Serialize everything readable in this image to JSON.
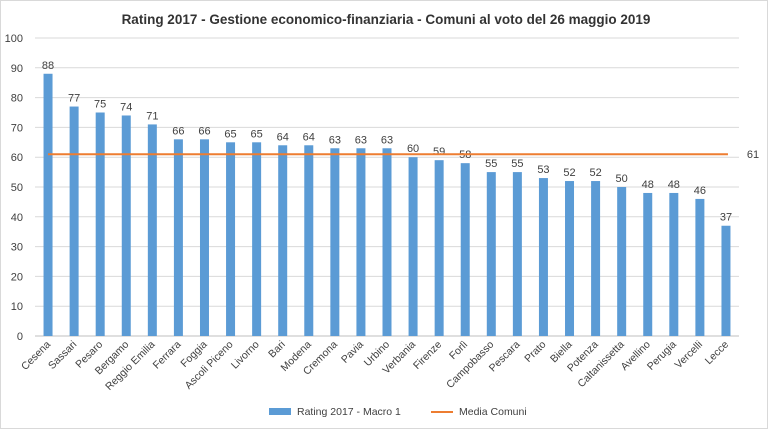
{
  "chart_data": {
    "type": "bar",
    "title": "Rating 2017 - Gestione economico-finanziaria - Comuni al voto del 26 maggio 2019",
    "xlabel": "",
    "ylabel": "",
    "ylim": [
      0,
      100
    ],
    "yticks": [
      "0",
      "10",
      "20",
      "30",
      "40",
      "50",
      "60",
      "70",
      "80",
      "90",
      "100"
    ],
    "grid": true,
    "legend_position": "bottom",
    "categories": [
      "Cesena",
      "Sassari",
      "Pesaro",
      "Bergamo",
      "Reggio Emilia",
      "Ferrara",
      "Foggia",
      "Ascoli Piceno",
      "Livorno",
      "Bari",
      "Modena",
      "Cremona",
      "Pavia",
      "Urbino",
      "Verbania",
      "Firenze",
      "Forlì",
      "Campobasso",
      "Pescara",
      "Prato",
      "Biella",
      "Potenza",
      "Caltanissetta",
      "Avellino",
      "Perugia",
      "Vercelli",
      "Lecce"
    ],
    "series": [
      {
        "name": "Rating 2017 - Macro 1",
        "type": "bar",
        "color": "#5b9bd5",
        "values": [
          88,
          77,
          75,
          74,
          71,
          66,
          66,
          65,
          65,
          64,
          64,
          63,
          63,
          63,
          60,
          59,
          58,
          55,
          55,
          53,
          52,
          52,
          50,
          48,
          48,
          46,
          37
        ],
        "labels": [
          "88",
          "77",
          "75",
          "74",
          "71",
          "66",
          "66",
          "65",
          "65",
          "64",
          "64",
          "63",
          "63",
          "63",
          "60",
          "59",
          "58",
          "55",
          "55",
          "53",
          "52",
          "52",
          "50",
          "48",
          "48",
          "46",
          "37"
        ]
      },
      {
        "name": "Media Comuni",
        "type": "line",
        "color": "#ed7d31",
        "value": 61,
        "label": "61"
      }
    ]
  }
}
